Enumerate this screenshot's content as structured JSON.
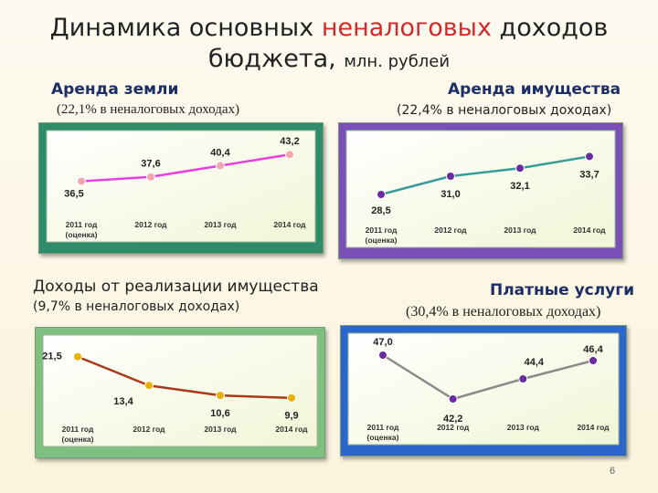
{
  "title": {
    "part1": "Динамика основных ",
    "highlight": "неналоговых",
    "part2": " доходов",
    "line2": "бюджета, ",
    "unit": "млн. рублей"
  },
  "colors": {
    "title_highlight": "#d22a2a",
    "section_title": "#1b2f66"
  },
  "page_number": "6",
  "chart_data": [
    {
      "type": "line",
      "title": "Аренда земли",
      "subtitle": "(22,1% в неналоговых доходах)",
      "categories": [
        "2011 год\n(оценка)",
        "2012 год",
        "2013 год",
        "2014 год"
      ],
      "values": [
        36.5,
        37.6,
        40.4,
        43.2
      ],
      "value_labels": [
        "36,5",
        "37,6",
        "40,4",
        "43,2"
      ],
      "ylim": [
        30,
        46
      ],
      "line_color": "#e63ee0",
      "marker_color": "#f4a6b0",
      "background": "#2f8c6a"
    },
    {
      "type": "line",
      "title": "Аренда имущества",
      "subtitle": "(22,4% в неналоговых доходах)",
      "categories": [
        "2011 год\n(оценка)",
        "2012 год",
        "2013 год",
        "2014 год"
      ],
      "values": [
        28.5,
        31.0,
        32.1,
        33.7
      ],
      "value_labels": [
        "28,5",
        "31,0",
        "32,1",
        "33,7"
      ],
      "ylim": [
        26,
        35.5
      ],
      "line_color": "#3a9a9a",
      "marker_color": "#6a2aa0",
      "background": "#7b4fb8"
    },
    {
      "type": "line",
      "title": "Доходы от реализации имущества",
      "subtitle": "(9,7% в неналоговых доходах)",
      "categories": [
        "2011 год\n(оценка)",
        "2012 год",
        "2013 год",
        "2014 год"
      ],
      "values": [
        21.5,
        13.4,
        10.6,
        9.9
      ],
      "value_labels": [
        "21,5",
        "13,4",
        "10,6",
        "9,9"
      ],
      "ylim": [
        6,
        24
      ],
      "line_color": "#a83a1a",
      "marker_color": "#e8b000",
      "background": "#7fbf7f"
    },
    {
      "type": "line",
      "title": "Платные услуги",
      "subtitle": "(30,4% в неналоговых доходах)",
      "categories": [
        "2011 год\n(оценка)",
        "2012 год",
        "2013 год",
        "2014 год"
      ],
      "values": [
        47.0,
        42.2,
        44.4,
        46.4
      ],
      "value_labels": [
        "47,0",
        "42,2",
        "44,4",
        "46,4"
      ],
      "ylim": [
        41,
        48
      ],
      "line_color": "#8a8a8a",
      "marker_color": "#6a2aa0",
      "background": "#2a66cc"
    }
  ]
}
